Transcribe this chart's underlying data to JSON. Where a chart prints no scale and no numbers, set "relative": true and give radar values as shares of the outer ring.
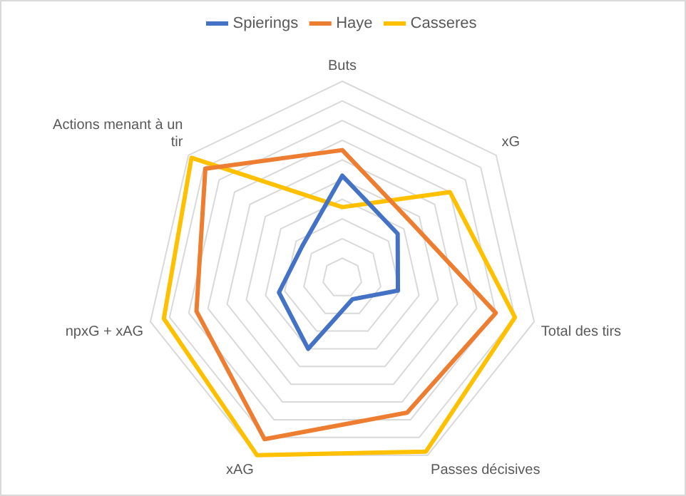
{
  "chart_data": {
    "type": "radar",
    "relative": true,
    "grid": true,
    "legend": "top",
    "categories": [
      "Buts",
      "xG",
      "Total des tirs",
      "Passes décisives",
      "xAG",
      "npxG + xAG",
      "Actions menant à un tir"
    ],
    "series": [
      {
        "name": "Spierings",
        "color": "#4472c4",
        "values": [
          0.52,
          0.36,
          0.29,
          0.12,
          0.4,
          0.33,
          0.26
        ]
      },
      {
        "name": "Haye",
        "color": "#ed7d31",
        "values": [
          0.65,
          0.45,
          0.8,
          0.76,
          0.91,
          0.76,
          0.89
        ]
      },
      {
        "name": "Casseres",
        "color": "#ffc000",
        "values": [
          0.36,
          0.7,
          0.9,
          0.98,
          1,
          0.93,
          0.98
        ]
      }
    ]
  }
}
